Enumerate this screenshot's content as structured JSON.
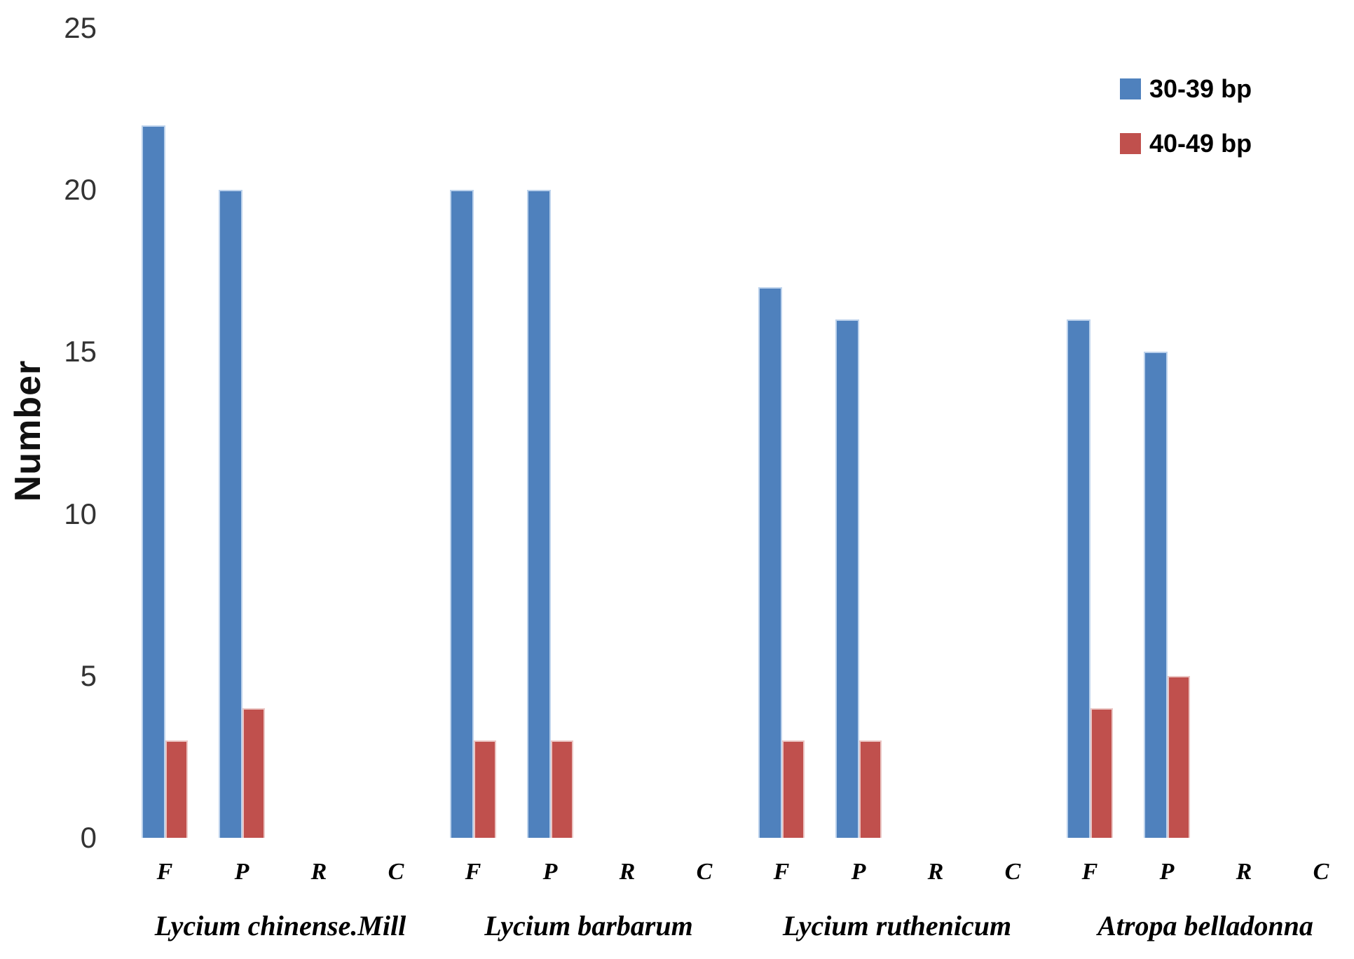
{
  "chart_data": {
    "type": "bar",
    "title": "",
    "xlabel": "",
    "ylabel": "Number",
    "ylim": [
      0,
      25
    ],
    "yticks": [
      0,
      5,
      10,
      15,
      20,
      25
    ],
    "grid": false,
    "axis_lines": false,
    "legend": {
      "position": "top-right",
      "entries": [
        {
          "label": "30-39 bp",
          "color": "#4F81BD",
          "edge_color": "#BCD2EC"
        },
        {
          "label": "40-49 bp",
          "color": "#C0504D",
          "edge_color": "#EBC6C4"
        }
      ]
    },
    "categories": [
      "F",
      "P",
      "R",
      "C"
    ],
    "groups": [
      {
        "label": "Lycium chinense.Mill",
        "series": [
          {
            "name": "30-39 bp",
            "values": [
              22,
              20,
              0,
              0
            ]
          },
          {
            "name": "40-49 bp",
            "values": [
              3,
              4,
              0,
              0
            ]
          }
        ]
      },
      {
        "label": "Lycium barbarum",
        "series": [
          {
            "name": "30-39 bp",
            "values": [
              20,
              20,
              0,
              0
            ]
          },
          {
            "name": "40-49 bp",
            "values": [
              3,
              3,
              0,
              0
            ]
          }
        ]
      },
      {
        "label": "Lycium ruthenicum",
        "series": [
          {
            "name": "30-39 bp",
            "values": [
              17,
              16,
              0,
              0
            ]
          },
          {
            "name": "40-49 bp",
            "values": [
              3,
              3,
              0,
              0
            ]
          }
        ]
      },
      {
        "label": "Atropa belladonna",
        "series": [
          {
            "name": "30-39 bp",
            "values": [
              16,
              15,
              0,
              0
            ]
          },
          {
            "name": "40-49 bp",
            "values": [
              4,
              5,
              0,
              0
            ]
          }
        ]
      }
    ]
  }
}
